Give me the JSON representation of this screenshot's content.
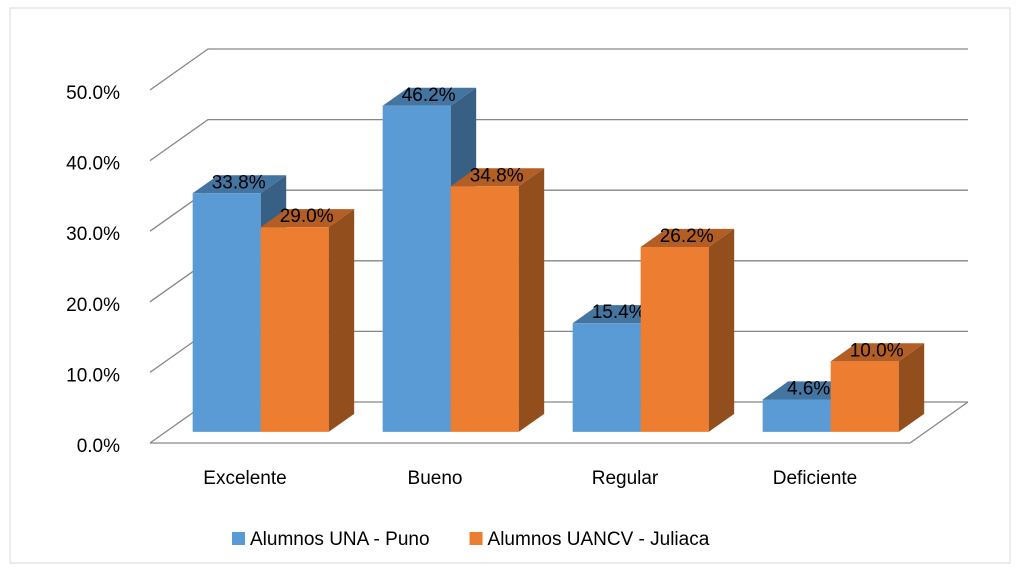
{
  "chart_data": {
    "type": "bar3d",
    "categories": [
      "Excelente",
      "Bueno",
      "Regular",
      "Deficiente"
    ],
    "series": [
      {
        "name": "Alumnos UNA - Puno",
        "color": "#5b9bd5",
        "values": [
          33.8,
          46.2,
          15.4,
          4.6
        ],
        "value_labels": [
          "33.8%",
          "46.2%",
          "15.4%",
          "4.6%"
        ]
      },
      {
        "name": "Alumnos UANCV - Juliaca",
        "color": "#ed7d31",
        "values": [
          29.0,
          34.8,
          26.2,
          10.0
        ],
        "value_labels": [
          "29.0%",
          "34.8%",
          "26.2%",
          "10.0%"
        ]
      }
    ],
    "ylim": [
      0,
      50
    ],
    "yticks": [
      {
        "value": 0,
        "label": "0.0%"
      },
      {
        "value": 10,
        "label": "10.0%"
      },
      {
        "value": 20,
        "label": "20.0%"
      },
      {
        "value": 30,
        "label": "30.0%"
      },
      {
        "value": 40,
        "label": "40.0%"
      },
      {
        "value": 50,
        "label": "50.0%"
      }
    ],
    "grid": true,
    "legend": "bottom"
  }
}
